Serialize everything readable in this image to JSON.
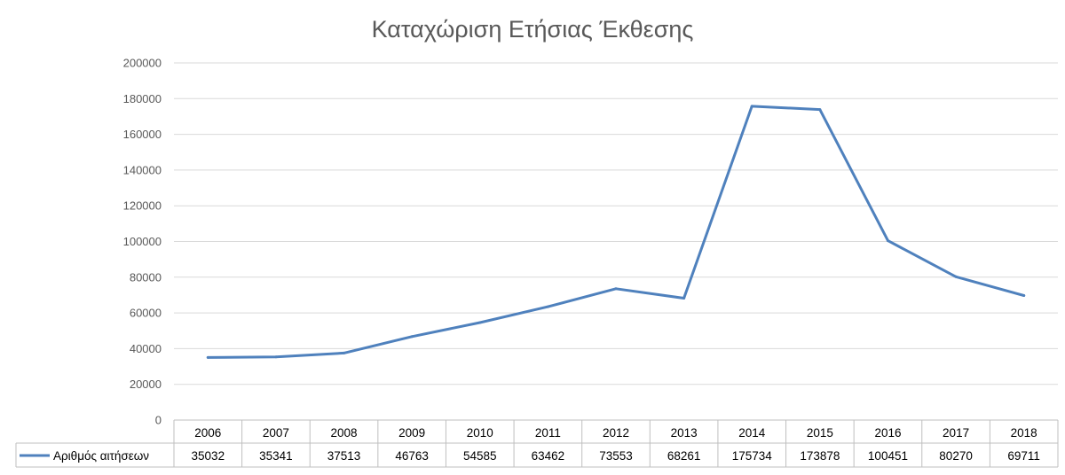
{
  "chart_data": {
    "type": "line",
    "title": "Καταχώριση Ετήσιας Έκθεσης",
    "xlabel": "",
    "ylabel": "",
    "categories": [
      "2006",
      "2007",
      "2008",
      "2009",
      "2010",
      "2011",
      "2012",
      "2013",
      "2014",
      "2015",
      "2016",
      "2017",
      "2018"
    ],
    "series": [
      {
        "name": "Αριθμός αιτήσεων",
        "values": [
          35032,
          35341,
          37513,
          46763,
          54585,
          63462,
          73553,
          68261,
          175734,
          173878,
          100451,
          80270,
          69711
        ],
        "color": "#4f81bd"
      }
    ],
    "ylim": [
      0,
      200000
    ],
    "yticks": [
      "0",
      "20000",
      "40000",
      "60000",
      "80000",
      "100000",
      "120000",
      "140000",
      "160000",
      "180000",
      "200000"
    ],
    "grid": true,
    "legend": "data-table"
  }
}
